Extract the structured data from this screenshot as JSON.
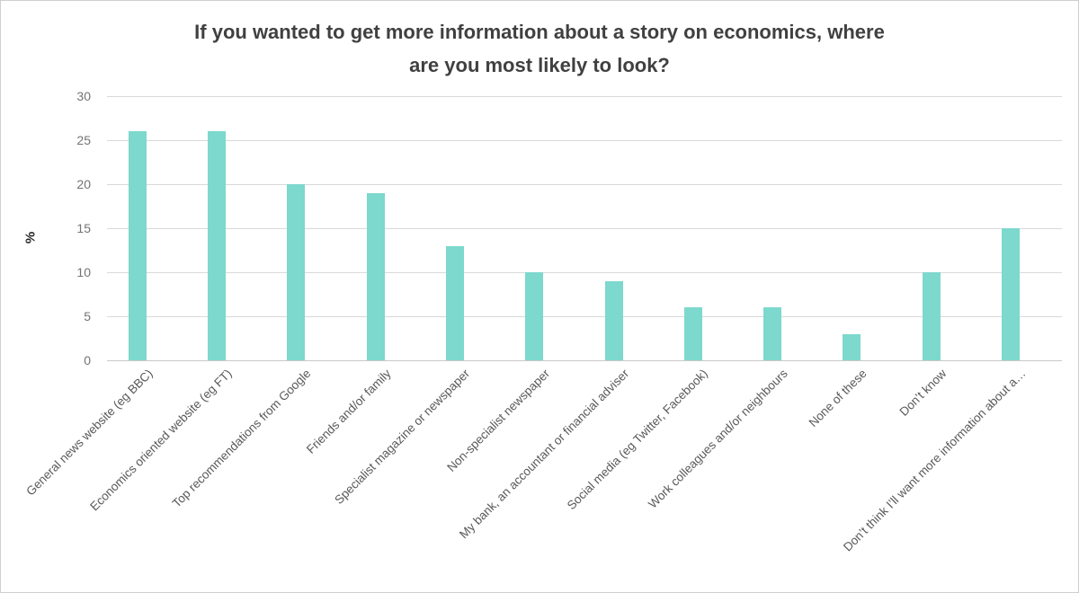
{
  "window": {
    "background": "#ffffff",
    "border_color": "#cfcfcf"
  },
  "chart_data": {
    "type": "bar",
    "title": "If you wanted to get more information about a story on economics, where are you most likely to look?",
    "title_lines": [
      "If you wanted to get more information about a story on economics, where",
      "are you most likely to look?"
    ],
    "xlabel": "",
    "ylabel": "%",
    "categories": [
      "General news website (eg BBC)",
      "Economics oriented website (eg FT)",
      "Top recommendations from Google",
      "Friends and/or family",
      "Specialist magazine or newspaper",
      "Non-specialist newspaper",
      "My bank, an accountant or financial adviser",
      "Social media (eg Twitter, Facebook)",
      "Work colleagues and/or neighbours",
      "None of these",
      "Don’t know",
      "Don’t think I’ll want more information about a…"
    ],
    "values": [
      26,
      26,
      20,
      19,
      13,
      10,
      9,
      6,
      6,
      3,
      10,
      15
    ],
    "ylim": [
      0,
      30
    ],
    "yticks": [
      0,
      5,
      10,
      15,
      20,
      25,
      30
    ],
    "grid": "horizontal",
    "legend": "none",
    "bar_color": "#7dd8cd",
    "gridline_color": "#d9d9d9",
    "axis_line_color": "#c9c9c9",
    "title_color": "#404040",
    "tick_label_color": "#737373",
    "category_label_color": "#595959"
  }
}
